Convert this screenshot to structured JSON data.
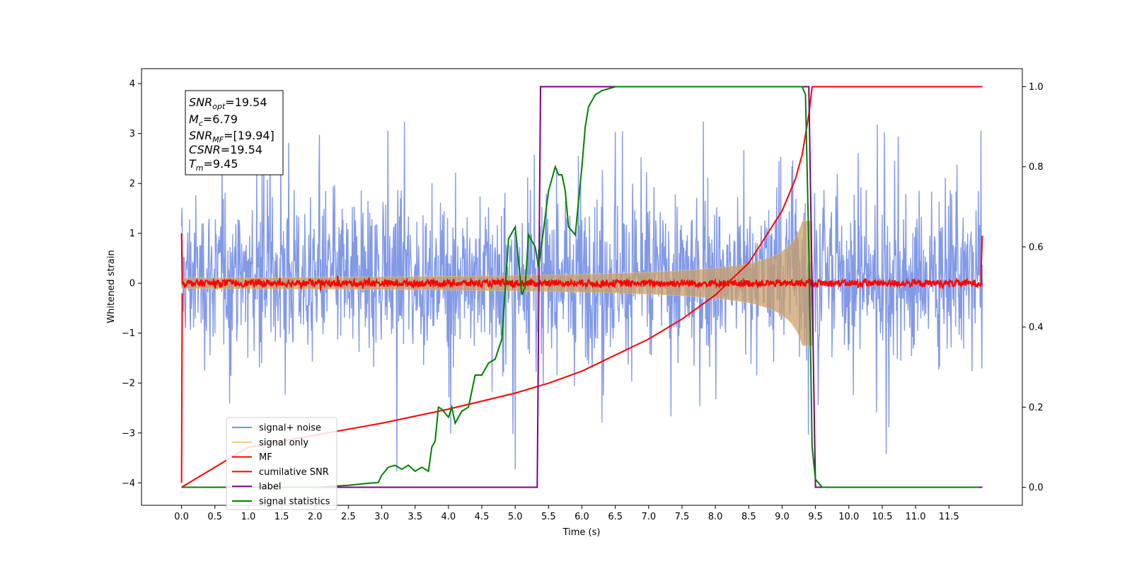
{
  "chart_data": {
    "type": "line",
    "xlabel": "Time (s)",
    "ylabel": "Whitened strain",
    "xlim": [
      -0.6,
      12.6
    ],
    "ylim": [
      -4.45,
      4.3
    ],
    "y2lim": [
      -0.045,
      1.045
    ],
    "x_ticks": [
      "0.0",
      "0.5",
      "1.0",
      "1.5",
      "2.0",
      "2.5",
      "3.0",
      "3.5",
      "4.0",
      "4.5",
      "5.0",
      "5.5",
      "6.0",
      "6.5",
      "7.0",
      "7.5",
      "8.0",
      "8.5",
      "9.0",
      "9.5",
      "10.0",
      "10.5",
      "11.0",
      "11.5"
    ],
    "y_ticks": [
      "4",
      "3",
      "2",
      "1",
      "0",
      "−1",
      "−2",
      "−3",
      "−4"
    ],
    "y2_ticks": [
      "1.0",
      "0.8",
      "0.6",
      "0.4",
      "0.2",
      "0.0"
    ],
    "grid": false,
    "legend_placement": "lower-left",
    "stats_box": {
      "snr_opt": {
        "base": "SNR",
        "sub": "opt",
        "value": "=19.54"
      },
      "mc": {
        "base": "M",
        "sub": "c",
        "value": "=6.79"
      },
      "snr_mf": {
        "base": "SNR",
        "sub": "MF",
        "value": "=[19.94]"
      },
      "csnr": {
        "base": "CSNR",
        "sub": "",
        "value": "=19.54"
      },
      "tm": {
        "base": "T",
        "sub": "m",
        "value": "=9.45"
      }
    },
    "series": [
      {
        "name": "signal+ noise",
        "color": "#7b93e6",
        "style": "noise band, approx. range -2.5 to 2.5 with spikes to ±4",
        "x_range": [
          0.0,
          12.0
        ]
      },
      {
        "name": "signal only",
        "color": "#f4c97a",
        "style": "chirp envelope growing to ~1.2 amplitude, ending at 9.45 s"
      },
      {
        "name": "MF",
        "color": "#ff0000",
        "style": "flat near 0 with edge spikes to 1.0 and -4.0",
        "x_range": [
          0.0,
          12.0
        ]
      },
      {
        "name": "cumilative SNR",
        "color": "#ff0000",
        "axis": "right",
        "x": [
          0.0,
          1.0,
          2.0,
          3.0,
          4.0,
          5.0,
          5.5,
          6.0,
          6.5,
          7.0,
          7.5,
          8.0,
          8.5,
          9.0,
          9.2,
          9.3,
          9.4,
          9.45,
          10.0,
          11.0,
          12.0
        ],
        "values": [
          0.0,
          0.1,
          0.13,
          0.16,
          0.195,
          0.235,
          0.26,
          0.29,
          0.33,
          0.37,
          0.42,
          0.48,
          0.56,
          0.69,
          0.77,
          0.83,
          0.93,
          1.0,
          1.0,
          1.0,
          1.0
        ]
      },
      {
        "name": "label",
        "color": "#800080",
        "axis": "right",
        "x": [
          0.0,
          5.33,
          5.38,
          9.4,
          9.5,
          12.0
        ],
        "values": [
          0.0,
          0.0,
          1.0,
          1.0,
          0.0,
          0.0
        ]
      },
      {
        "name": "signal statistics",
        "color": "#008000",
        "axis": "right",
        "x": [
          0.0,
          1.0,
          2.0,
          2.5,
          2.8,
          2.95,
          3.0,
          3.1,
          3.2,
          3.3,
          3.4,
          3.5,
          3.6,
          3.7,
          3.75,
          3.8,
          3.85,
          3.9,
          4.0,
          4.05,
          4.1,
          4.2,
          4.3,
          4.4,
          4.5,
          4.6,
          4.7,
          4.8,
          4.9,
          5.0,
          5.1,
          5.15,
          5.2,
          5.3,
          5.35,
          5.4,
          5.5,
          5.6,
          5.65,
          5.7,
          5.75,
          5.8,
          5.9,
          6.0,
          6.05,
          6.1,
          6.2,
          6.3,
          6.5,
          7.0,
          8.0,
          8.5,
          9.0,
          9.3,
          9.35,
          9.4,
          9.45,
          9.5,
          9.6,
          10.0,
          11.0,
          11.95
        ],
        "values": [
          0.0,
          0.0,
          0.0,
          0.005,
          0.01,
          0.012,
          0.03,
          0.05,
          0.055,
          0.045,
          0.055,
          0.04,
          0.05,
          0.04,
          0.1,
          0.115,
          0.2,
          0.195,
          0.175,
          0.2,
          0.16,
          0.19,
          0.2,
          0.28,
          0.28,
          0.31,
          0.32,
          0.37,
          0.62,
          0.65,
          0.48,
          0.5,
          0.63,
          0.6,
          0.55,
          0.61,
          0.74,
          0.8,
          0.78,
          0.78,
          0.74,
          0.65,
          0.63,
          0.8,
          0.9,
          0.95,
          0.98,
          0.99,
          1.0,
          1.0,
          1.0,
          1.0,
          1.0,
          1.0,
          0.98,
          0.6,
          0.1,
          0.02,
          0.0,
          0.0,
          0.0,
          0.0
        ]
      }
    ]
  }
}
